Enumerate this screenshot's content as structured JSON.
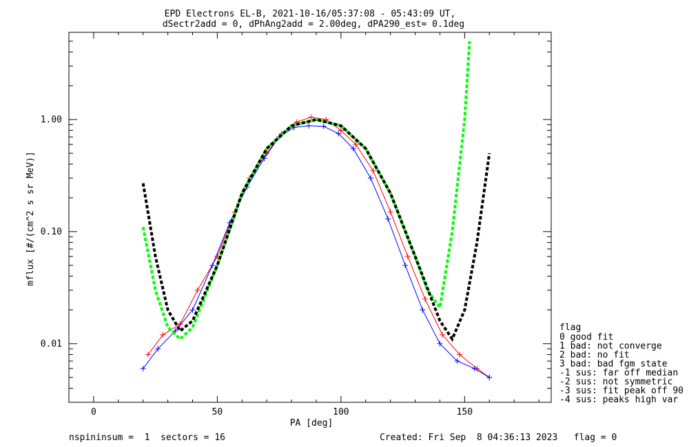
{
  "chart_data": {
    "type": "line",
    "title": "EPD Electrons EL-B, 2021-10-16/05:37:08 - 05:43:09 UT,",
    "subtitle": "dSectr2add = 0, dPhAng2add = 2.00deg, dPA290_est=   0.1deg",
    "xlabel": "PA [deg]",
    "ylabel": "mflux [#/(cm^2 s sr MeV)]",
    "xlim": [
      -10,
      185
    ],
    "ylim": [
      0.003,
      6.0
    ],
    "yscale": "log",
    "xticks": [
      0,
      50,
      100,
      150
    ],
    "xtick_labels": [
      "0",
      "50",
      "100",
      "150"
    ],
    "yticks": [
      0.01,
      0.1,
      1.0
    ],
    "ytick_labels": [
      "0.01",
      "0.10",
      "1.00"
    ],
    "colors": {
      "red": "#ff0000",
      "blue": "#0000ff",
      "green": "#00ff00",
      "black": "#000000"
    },
    "series": [
      {
        "color": "#ff0000",
        "marker": "+",
        "x": [
          22,
          28,
          35,
          42,
          50,
          57,
          63,
          70,
          76,
          82,
          88,
          94,
          100,
          106,
          113,
          120,
          127,
          134,
          141,
          148,
          155,
          160
        ],
        "y": [
          0.008,
          0.012,
          0.015,
          0.03,
          0.06,
          0.15,
          0.3,
          0.5,
          0.75,
          0.95,
          1.05,
          1.0,
          0.8,
          0.6,
          0.35,
          0.15,
          0.06,
          0.025,
          0.012,
          0.008,
          0.006,
          0.005
        ]
      },
      {
        "color": "#0000ff",
        "marker": "+",
        "x": [
          20,
          26,
          33,
          40,
          48,
          55,
          62,
          69,
          75,
          81,
          87,
          93,
          99,
          105,
          112,
          119,
          126,
          133,
          140,
          147,
          154,
          160
        ],
        "y": [
          0.006,
          0.009,
          0.013,
          0.02,
          0.05,
          0.12,
          0.25,
          0.45,
          0.7,
          0.85,
          0.88,
          0.87,
          0.75,
          0.55,
          0.3,
          0.13,
          0.05,
          0.02,
          0.01,
          0.007,
          0.006,
          0.005
        ]
      }
    ],
    "fit_curves": [
      {
        "color": "#00ff00",
        "x": [
          20,
          25,
          30,
          35,
          40,
          50,
          60,
          70,
          80,
          90,
          100,
          110,
          120,
          130,
          135,
          140,
          145,
          150,
          152
        ],
        "y": [
          0.11,
          0.03,
          0.014,
          0.011,
          0.014,
          0.05,
          0.22,
          0.55,
          0.88,
          1.0,
          0.88,
          0.55,
          0.22,
          0.06,
          0.03,
          0.021,
          0.1,
          1.0,
          5.0
        ]
      },
      {
        "color": "#000000",
        "x": [
          20,
          25,
          30,
          35,
          40,
          50,
          60,
          70,
          80,
          90,
          100,
          110,
          120,
          130,
          140,
          145,
          150,
          155,
          160
        ],
        "y": [
          0.27,
          0.06,
          0.02,
          0.013,
          0.016,
          0.05,
          0.22,
          0.55,
          0.88,
          1.0,
          0.88,
          0.55,
          0.22,
          0.06,
          0.016,
          0.011,
          0.02,
          0.08,
          0.5
        ]
      }
    ],
    "legend": {
      "title": "flag",
      "entries": [
        " 0 good fit",
        " 1 bad: not converge",
        " 2 bad: no fit",
        " 3 bad: bad fgm state",
        "-1 sus: far off median",
        "-2 sus: not symmetric",
        "-3 sus: fit peak off 90",
        "-4 sus: peaks high var"
      ]
    }
  },
  "footer": {
    "left": "nspininsum =  1  sectors = 16",
    "right": "Created: Fri Sep  8 04:36:13 2023   flag = 0"
  }
}
